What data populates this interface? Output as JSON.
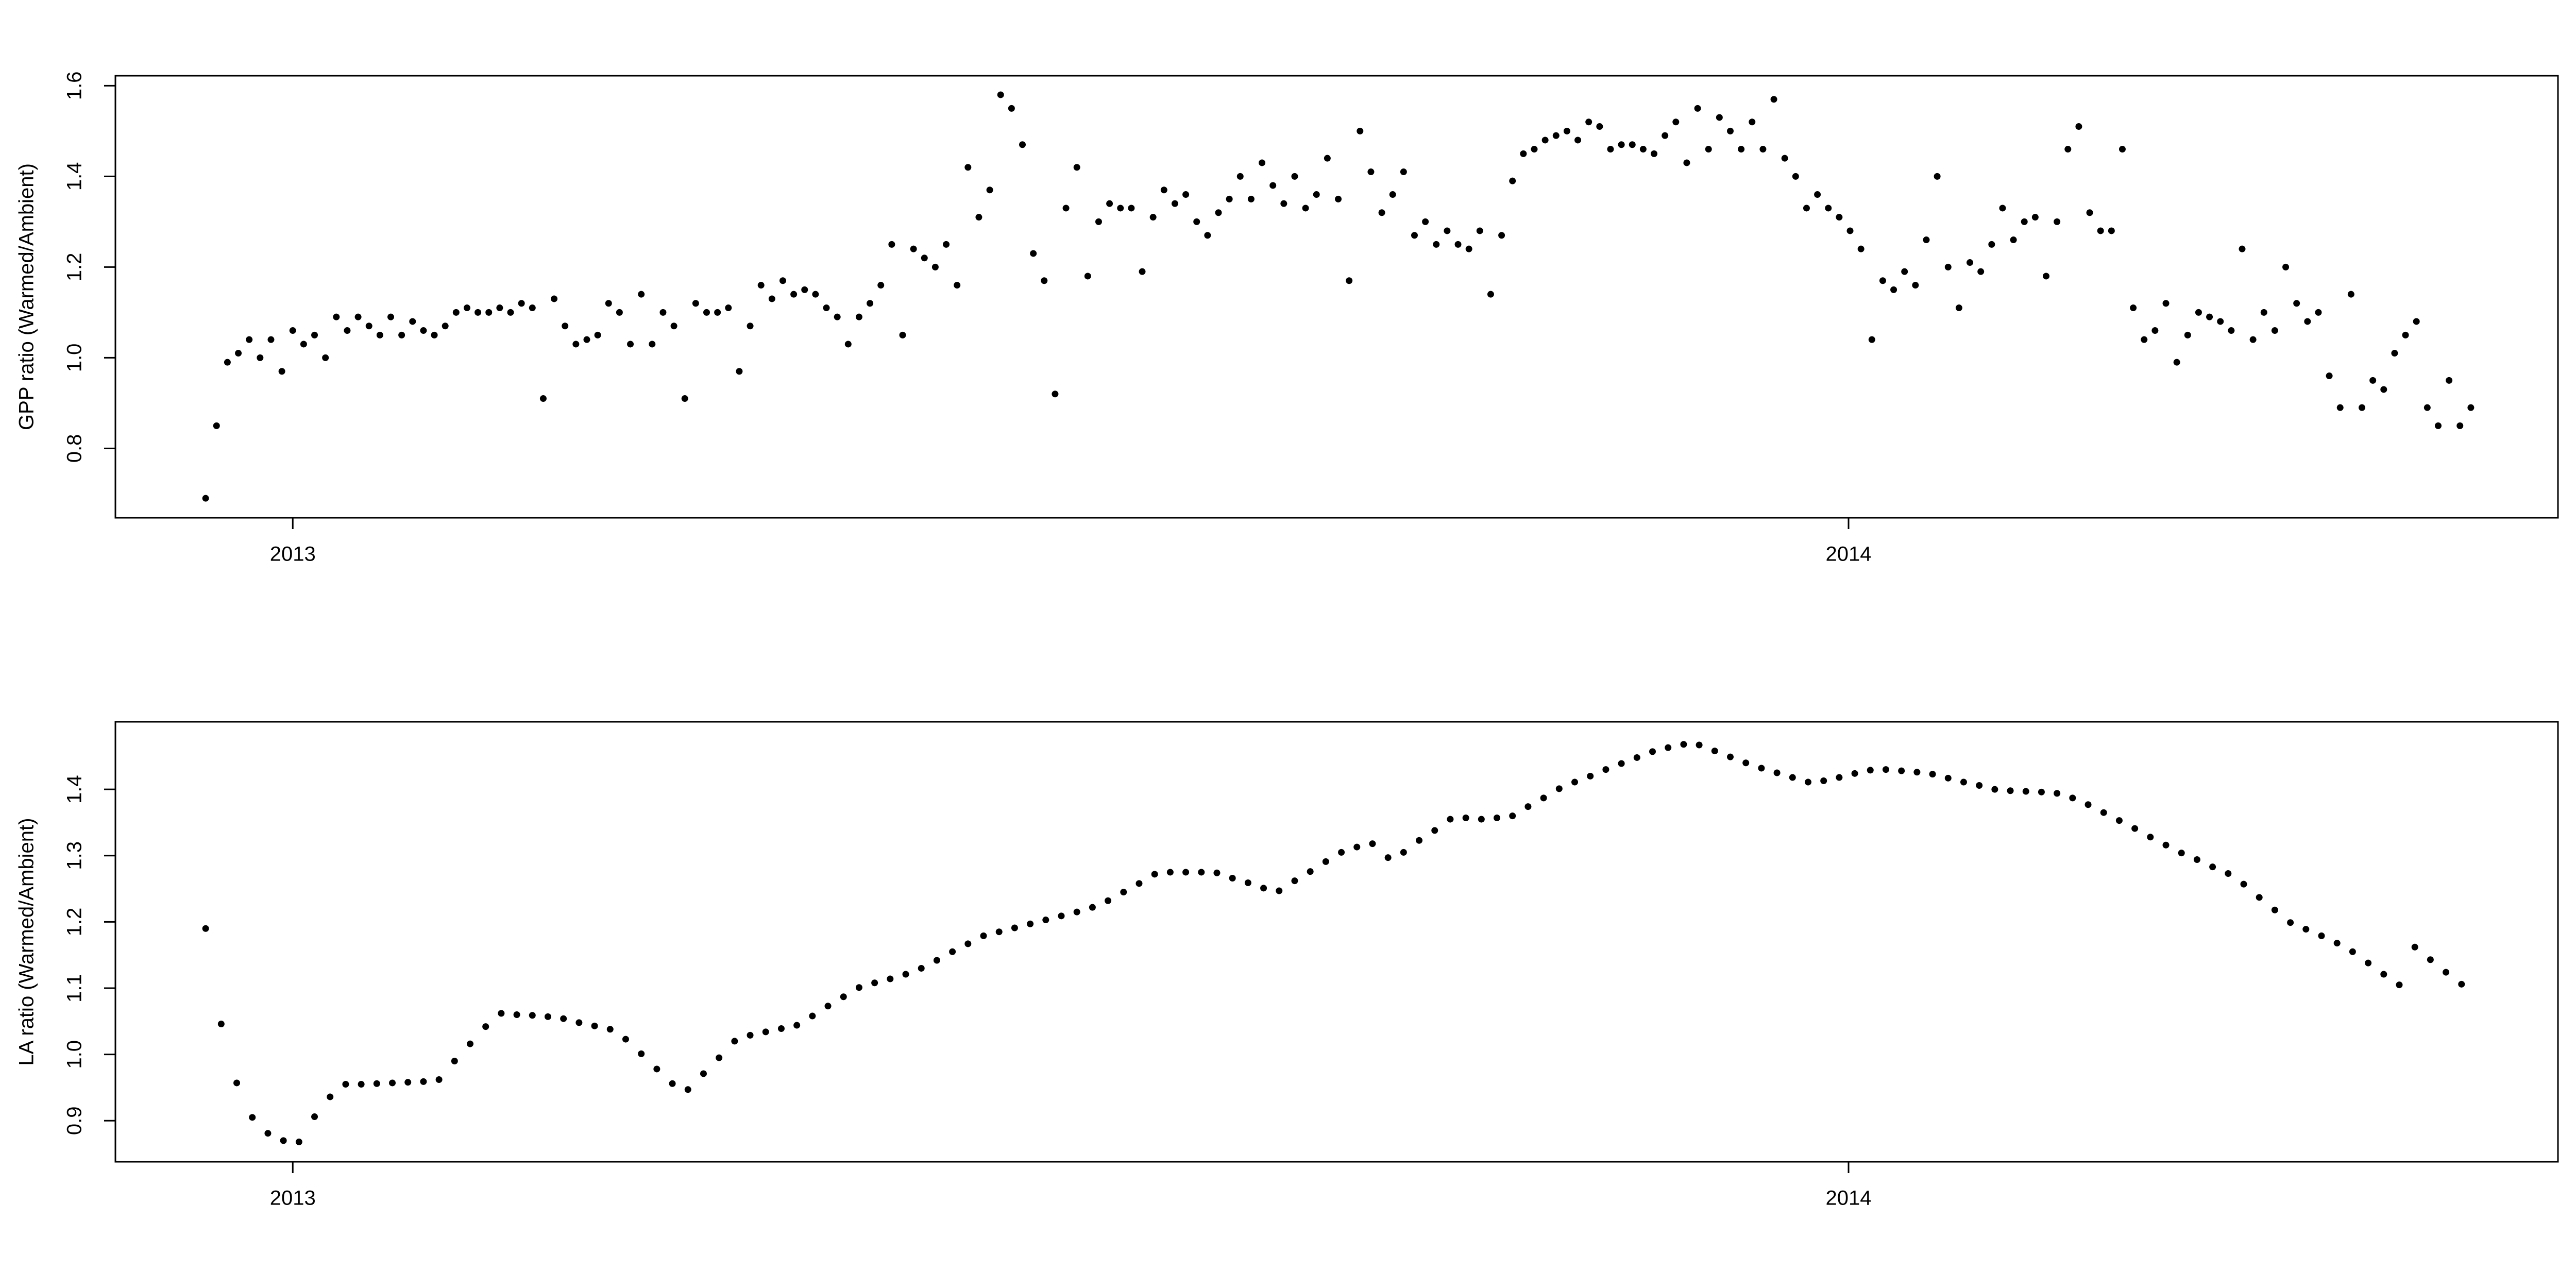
{
  "chart_data": [
    {
      "type": "scatter",
      "y_label": "GPP ratio (Warmed/Ambient)",
      "color": "#000000",
      "xlim": [
        2012.886,
        2014.456
      ],
      "xticks": [
        2013,
        2014
      ],
      "ylim": [
        0.647,
        1.622
      ],
      "yticks": [
        0.8,
        {
          "value": 1,
          "label": "1.0"
        },
        1.2,
        1.4,
        1.6
      ],
      "x": [
        2012.944,
        2012.951,
        2012.958,
        2012.965,
        2012.972,
        2012.979,
        2012.986,
        2012.993,
        2013,
        2013.007,
        2013.014,
        2013.021,
        2013.028,
        2013.035,
        2013.042,
        2013.049,
        2013.056,
        2013.063,
        2013.07,
        2013.077,
        2013.084,
        2013.091,
        2013.098,
        2013.105,
        2013.112,
        2013.119,
        2013.126,
        2013.133,
        2013.14,
        2013.147,
        2013.154,
        2013.161,
        2013.168,
        2013.175,
        2013.182,
        2013.189,
        2013.196,
        2013.203,
        2013.21,
        2013.217,
        2013.224,
        2013.231,
        2013.238,
        2013.245,
        2013.252,
        2013.259,
        2013.266,
        2013.273,
        2013.28,
        2013.287,
        2013.294,
        2013.301,
        2013.308,
        2013.315,
        2013.322,
        2013.329,
        2013.336,
        2013.343,
        2013.35,
        2013.357,
        2013.364,
        2013.371,
        2013.378,
        2013.385,
        2013.392,
        2013.399,
        2013.406,
        2013.413,
        2013.42,
        2013.427,
        2013.434,
        2013.441,
        2013.448,
        2013.455,
        2013.462,
        2013.469,
        2013.476,
        2013.483,
        2013.49,
        2013.497,
        2013.504,
        2013.511,
        2013.518,
        2013.525,
        2013.532,
        2013.539,
        2013.546,
        2013.553,
        2013.56,
        2013.567,
        2013.574,
        2013.581,
        2013.588,
        2013.595,
        2013.602,
        2013.609,
        2013.616,
        2013.623,
        2013.63,
        2013.637,
        2013.644,
        2013.651,
        2013.658,
        2013.665,
        2013.672,
        2013.679,
        2013.686,
        2013.693,
        2013.7,
        2013.707,
        2013.714,
        2013.721,
        2013.728,
        2013.735,
        2013.742,
        2013.749,
        2013.756,
        2013.763,
        2013.77,
        2013.777,
        2013.784,
        2013.791,
        2013.798,
        2013.805,
        2013.812,
        2013.819,
        2013.826,
        2013.833,
        2013.84,
        2013.847,
        2013.854,
        2013.861,
        2013.868,
        2013.875,
        2013.882,
        2013.889,
        2013.896,
        2013.903,
        2013.91,
        2013.917,
        2013.924,
        2013.931,
        2013.938,
        2013.945,
        2013.952,
        2013.959,
        2013.966,
        2013.973,
        2013.98,
        2013.987,
        2013.994,
        2014.001,
        2014.008,
        2014.015,
        2014.022,
        2014.029,
        2014.036,
        2014.043,
        2014.05,
        2014.057,
        2014.064,
        2014.071,
        2014.078,
        2014.085,
        2014.092,
        2014.099,
        2014.106,
        2014.113,
        2014.12,
        2014.127,
        2014.134,
        2014.141,
        2014.148,
        2014.155,
        2014.162,
        2014.169,
        2014.176,
        2014.183,
        2014.19,
        2014.197,
        2014.204,
        2014.211,
        2014.218,
        2014.225,
        2014.232,
        2014.239,
        2014.246,
        2014.253,
        2014.26,
        2014.267,
        2014.274,
        2014.281,
        2014.288,
        2014.295,
        2014.302,
        2014.309,
        2014.316,
        2014.323,
        2014.33,
        2014.337,
        2014.344,
        2014.351,
        2014.358,
        2014.365,
        2014.372,
        2014.379,
        2014.386,
        2014.393,
        2014.4
      ],
      "values": [
        0.69,
        0.85,
        0.99,
        1.01,
        1.04,
        1.0,
        1.04,
        0.97,
        1.06,
        1.03,
        1.05,
        1.0,
        1.09,
        1.06,
        1.09,
        1.07,
        1.05,
        1.09,
        1.05,
        1.08,
        1.06,
        1.05,
        1.07,
        1.1,
        1.11,
        1.1,
        1.1,
        1.11,
        1.1,
        1.12,
        1.11,
        0.91,
        1.13,
        1.07,
        1.03,
        1.04,
        1.05,
        1.12,
        1.1,
        1.03,
        1.14,
        1.03,
        1.1,
        1.07,
        0.91,
        1.12,
        1.1,
        1.1,
        1.11,
        0.97,
        1.07,
        1.16,
        1.13,
        1.17,
        1.14,
        1.15,
        1.14,
        1.11,
        1.09,
        1.03,
        1.09,
        1.12,
        1.16,
        1.25,
        1.05,
        1.24,
        1.22,
        1.2,
        1.25,
        1.16,
        1.42,
        1.31,
        1.37,
        1.58,
        1.55,
        1.47,
        1.23,
        1.17,
        0.92,
        1.33,
        1.42,
        1.18,
        1.3,
        1.34,
        1.33,
        1.33,
        1.19,
        1.31,
        1.37,
        1.34,
        1.36,
        1.3,
        1.27,
        1.32,
        1.35,
        1.4,
        1.35,
        1.43,
        1.38,
        1.34,
        1.4,
        1.33,
        1.36,
        1.44,
        1.35,
        1.17,
        1.5,
        1.41,
        1.32,
        1.36,
        1.41,
        1.27,
        1.3,
        1.25,
        1.28,
        1.25,
        1.24,
        1.28,
        1.14,
        1.27,
        1.39,
        1.45,
        1.46,
        1.48,
        1.49,
        1.5,
        1.48,
        1.52,
        1.51,
        1.46,
        1.47,
        1.47,
        1.46,
        1.45,
        1.49,
        1.52,
        1.43,
        1.55,
        1.46,
        1.53,
        1.5,
        1.46,
        1.52,
        1.46,
        1.57,
        1.44,
        1.4,
        1.33,
        1.36,
        1.33,
        1.31,
        1.28,
        1.24,
        1.04,
        1.17,
        1.15,
        1.19,
        1.16,
        1.26,
        1.4,
        1.2,
        1.11,
        1.21,
        1.19,
        1.25,
        1.33,
        1.26,
        1.3,
        1.31,
        1.18,
        1.3,
        1.46,
        1.51,
        1.32,
        1.28,
        1.28,
        1.46,
        1.11,
        1.04,
        1.06,
        1.12,
        0.99,
        1.05,
        1.1,
        1.09,
        1.08,
        1.06,
        1.24,
        1.04,
        1.1,
        1.06,
        1.2,
        1.12,
        1.08,
        1.1,
        0.96,
        0.89,
        1.14,
        0.89,
        0.95,
        0.93,
        1.01,
        1.05,
        1.08,
        0.89,
        0.85,
        0.95,
        0.85,
        0.89
      ]
    },
    {
      "type": "scatter",
      "y_label": "LA ratio (Warmed/Ambient)",
      "color": "#000000",
      "xlim": [
        2012.886,
        2014.456
      ],
      "xticks": [
        2013,
        2014
      ],
      "ylim": [
        0.838,
        1.502
      ],
      "yticks": [
        0.9,
        {
          "value": 1,
          "label": "1.0"
        },
        1.1,
        1.2,
        1.3,
        1.4
      ],
      "x": [
        2012.944,
        2012.954,
        2012.964,
        2012.974,
        2012.984,
        2012.994,
        2013.004,
        2013.014,
        2013.024,
        2013.034,
        2013.044,
        2013.054,
        2013.064,
        2013.074,
        2013.084,
        2013.094,
        2013.104,
        2013.114,
        2013.124,
        2013.134,
        2013.144,
        2013.154,
        2013.164,
        2013.174,
        2013.184,
        2013.194,
        2013.204,
        2013.214,
        2013.224,
        2013.234,
        2013.244,
        2013.254,
        2013.264,
        2013.274,
        2013.284,
        2013.294,
        2013.304,
        2013.314,
        2013.324,
        2013.334,
        2013.344,
        2013.354,
        2013.364,
        2013.374,
        2013.384,
        2013.394,
        2013.404,
        2013.414,
        2013.424,
        2013.434,
        2013.444,
        2013.454,
        2013.464,
        2013.474,
        2013.484,
        2013.494,
        2013.504,
        2013.514,
        2013.524,
        2013.534,
        2013.544,
        2013.554,
        2013.564,
        2013.574,
        2013.584,
        2013.594,
        2013.604,
        2013.614,
        2013.624,
        2013.634,
        2013.644,
        2013.654,
        2013.664,
        2013.674,
        2013.684,
        2013.694,
        2013.704,
        2013.714,
        2013.724,
        2013.734,
        2013.744,
        2013.754,
        2013.764,
        2013.774,
        2013.784,
        2013.794,
        2013.804,
        2013.814,
        2013.824,
        2013.834,
        2013.844,
        2013.854,
        2013.864,
        2013.874,
        2013.884,
        2013.894,
        2013.904,
        2013.914,
        2013.924,
        2013.934,
        2013.944,
        2013.954,
        2013.964,
        2013.974,
        2013.984,
        2013.994,
        2014.004,
        2014.014,
        2014.024,
        2014.034,
        2014.044,
        2014.054,
        2014.064,
        2014.074,
        2014.084,
        2014.094,
        2014.104,
        2014.114,
        2014.124,
        2014.134,
        2014.144,
        2014.154,
        2014.164,
        2014.174,
        2014.184,
        2014.194,
        2014.204,
        2014.214,
        2014.224,
        2014.234,
        2014.244,
        2014.254,
        2014.264,
        2014.274,
        2014.284,
        2014.294,
        2014.304,
        2014.314,
        2014.324,
        2014.334,
        2014.344,
        2014.354,
        2014.364,
        2014.374,
        2014.384,
        2014.394
      ],
      "values": [
        1.19,
        1.046,
        0.957,
        0.905,
        0.881,
        0.87,
        0.868,
        0.906,
        0.936,
        0.955,
        0.955,
        0.956,
        0.957,
        0.958,
        0.959,
        0.962,
        0.99,
        1.016,
        1.042,
        1.062,
        1.06,
        1.059,
        1.057,
        1.054,
        1.048,
        1.043,
        1.038,
        1.023,
        1.001,
        0.978,
        0.956,
        0.947,
        0.971,
        0.995,
        1.02,
        1.029,
        1.034,
        1.039,
        1.044,
        1.058,
        1.073,
        1.087,
        1.101,
        1.108,
        1.114,
        1.121,
        1.13,
        1.142,
        1.155,
        1.167,
        1.179,
        1.185,
        1.191,
        1.197,
        1.203,
        1.209,
        1.215,
        1.222,
        1.232,
        1.245,
        1.258,
        1.272,
        1.275,
        1.275,
        1.275,
        1.274,
        1.266,
        1.259,
        1.251,
        1.247,
        1.262,
        1.276,
        1.291,
        1.305,
        1.313,
        1.318,
        1.297,
        1.305,
        1.323,
        1.338,
        1.355,
        1.357,
        1.355,
        1.357,
        1.36,
        1.374,
        1.387,
        1.401,
        1.411,
        1.42,
        1.43,
        1.439,
        1.448,
        1.457,
        1.463,
        1.468,
        1.467,
        1.458,
        1.449,
        1.44,
        1.432,
        1.425,
        1.418,
        1.411,
        1.413,
        1.418,
        1.424,
        1.429,
        1.43,
        1.428,
        1.426,
        1.423,
        1.417,
        1.411,
        1.406,
        1.4,
        1.398,
        1.397,
        1.396,
        1.394,
        1.387,
        1.377,
        1.365,
        1.353,
        1.341,
        1.328,
        1.316,
        1.304,
        1.294,
        1.283,
        1.273,
        1.257,
        1.237,
        1.218,
        1.199,
        1.189,
        1.179,
        1.168,
        1.155,
        1.138,
        1.121,
        1.105,
        1.162,
        1.143,
        1.124,
        1.106
      ]
    }
  ]
}
